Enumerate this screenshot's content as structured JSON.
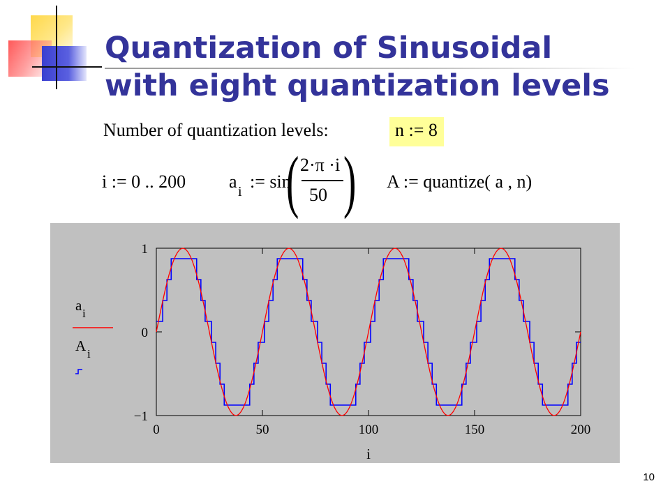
{
  "slide": {
    "title_line1": "Quantization of Sinusoidal",
    "title_line2": "with eight quantization levels",
    "page_number": "10",
    "accent_color": "#33339a"
  },
  "equations": {
    "levels_label": "Number of quantization levels:",
    "n_assign": "n := 8",
    "i_range": "i := 0 .. 200",
    "a_lhs": "a",
    "a_sub": "i",
    "a_assign": ":= sin",
    "a_numerator": "2·π ·i",
    "a_denominator": "50",
    "quantize": "A := quantize( a , n)",
    "highlight_color": "#ffff99"
  },
  "chart_data": {
    "type": "line",
    "title": "",
    "xlabel": "i",
    "ylabel": "",
    "xlim": [
      0,
      200
    ],
    "ylim": [
      -1,
      1
    ],
    "x_tick_labels": [
      "0",
      "50",
      "100",
      "150",
      "200"
    ],
    "y_tick_labels": [
      "1",
      "0",
      "−1"
    ],
    "x_ticks": [
      0,
      50,
      100,
      150,
      200
    ],
    "y_ticks": [
      1,
      0,
      -1
    ],
    "grid": false,
    "legend_placement": "left",
    "series": [
      {
        "name": "a",
        "name_sub": "i",
        "color": "#ff0000",
        "style": "line",
        "formula": "sin(2·π·i/50)",
        "x_start": 0,
        "x_end": 200,
        "x_step": 1
      },
      {
        "name": "A",
        "name_sub": "i",
        "color": "#0000ff",
        "style": "step",
        "formula": "quantize(a, 8)",
        "levels": 8,
        "x_start": 0,
        "x_end": 200,
        "x_step": 1
      }
    ]
  }
}
